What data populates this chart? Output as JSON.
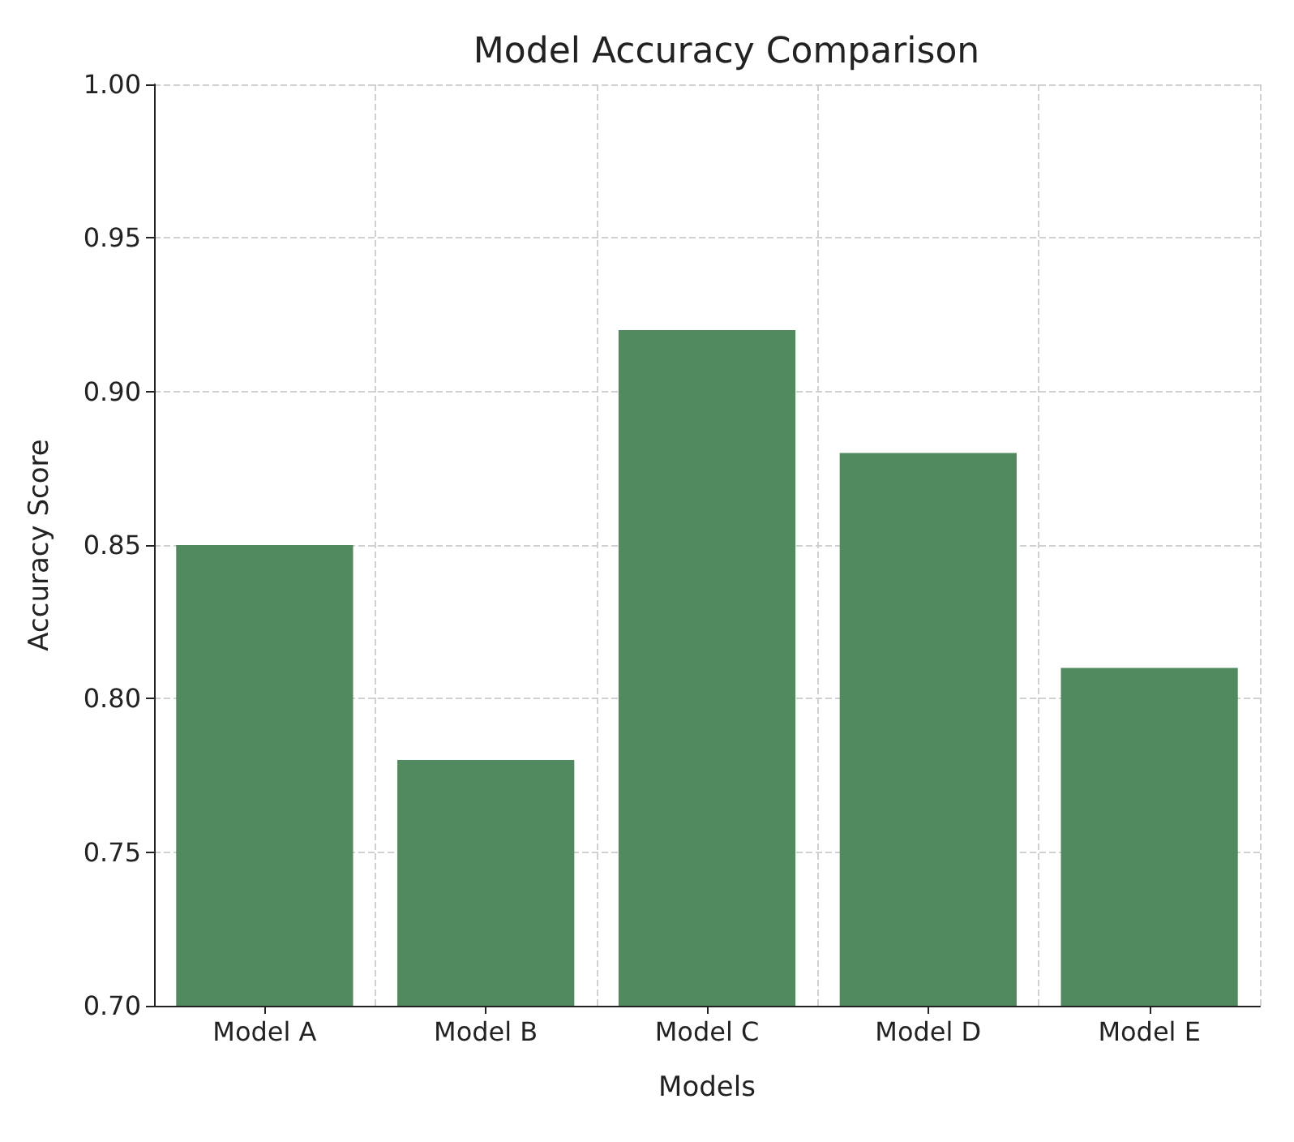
{
  "chart_data": {
    "type": "bar",
    "title": "Model Accuracy Comparison",
    "xlabel": "Models",
    "ylabel": "Accuracy Score",
    "categories": [
      "Model A",
      "Model B",
      "Model C",
      "Model D",
      "Model E"
    ],
    "values": [
      0.85,
      0.78,
      0.92,
      0.88,
      0.81
    ],
    "color": "#518a5e",
    "ylim": [
      0.7,
      1.0
    ],
    "yticks": [
      {
        "value": 0.7,
        "label": "0.70"
      },
      0.75,
      {
        "value": 0.8,
        "label": "0.80"
      },
      0.85,
      {
        "value": 0.9,
        "label": "0.90"
      },
      0.95,
      {
        "value": 1.0,
        "label": "1.00"
      }
    ],
    "grid": true
  }
}
